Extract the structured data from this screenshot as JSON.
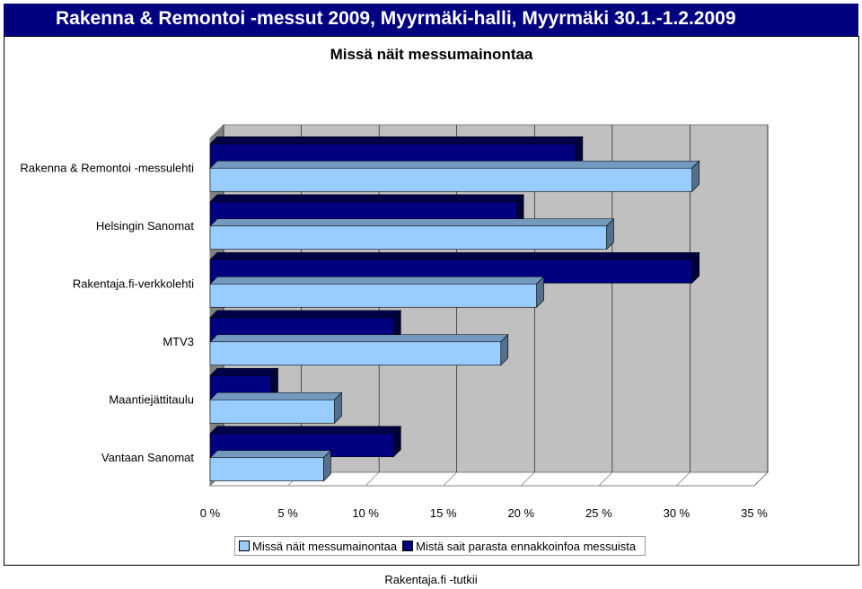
{
  "header": {
    "title": "Rakenna & Remontoi -messut 2009, Myyrmäki-halli, Myyrmäki 30.1.-1.2.2009"
  },
  "chart_data": {
    "type": "bar",
    "orientation": "horizontal",
    "title": "Missä näit messumainontaa",
    "categories": [
      "Rakenna & Remontoi -messulehti",
      "Helsingin Sanomat",
      "Rakentaja.fi-verkkolehti",
      "MTV3",
      "Maantiejättitaulu",
      "Vantaan Sanomat"
    ],
    "series": [
      {
        "name": "Missä näit messumainontaa",
        "values": [
          31,
          25.5,
          21,
          18.7,
          8,
          7.3
        ]
      },
      {
        "name": "Mistä sait parasta ennakkoinfoa messuista",
        "values": [
          23.5,
          19.7,
          31,
          11.8,
          3.9,
          11.8
        ]
      }
    ],
    "xlim": [
      0,
      35
    ],
    "x_ticks": [
      "0 %",
      "5 %",
      "10 %",
      "15 %",
      "20 %",
      "25 %",
      "30 %",
      "35 %"
    ],
    "x_tick_values": [
      0,
      5,
      10,
      15,
      20,
      25,
      30,
      35
    ],
    "grid": true,
    "legend": "bottom",
    "colors": {
      "series1": "#99ccff",
      "series2": "#000080",
      "wall": "#c0c0c0",
      "header": "#000080"
    }
  },
  "footer": {
    "source": "Rakentaja.fi -tutkii"
  }
}
